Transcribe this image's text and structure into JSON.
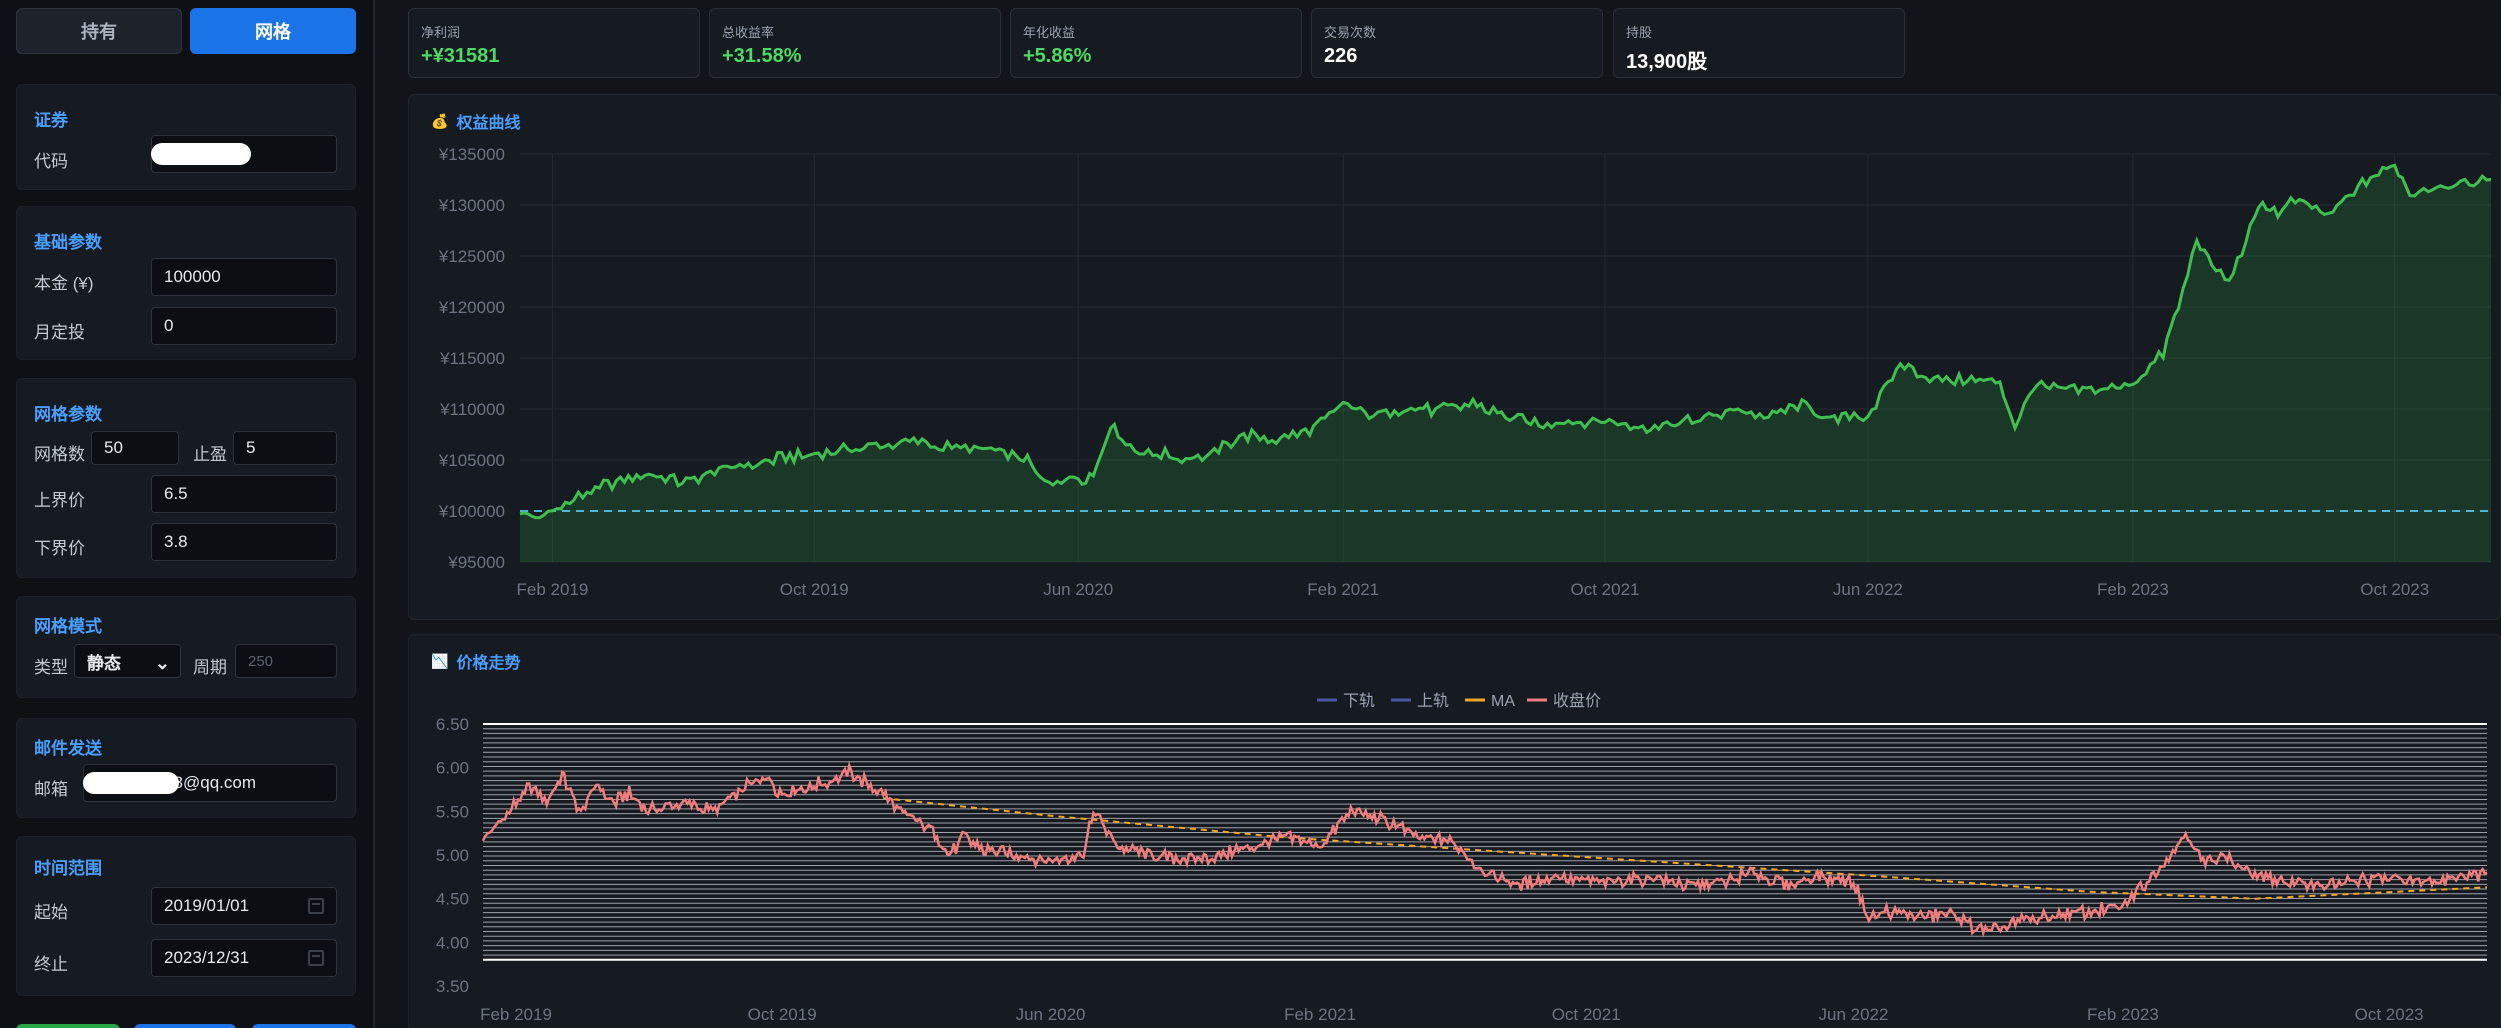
{
  "sidebar": {
    "tabs": [
      {
        "label": "持有",
        "active": false
      },
      {
        "label": "网格",
        "active": true
      }
    ],
    "security": {
      "title": "证券",
      "code_label": "代码",
      "code_value": ""
    },
    "basic": {
      "title": "基础参数",
      "capital_label": "本金 (¥)",
      "capital_value": "100000",
      "monthly_label": "月定投",
      "monthly_value": "0"
    },
    "grid": {
      "title": "网格参数",
      "count_label": "网格数",
      "count_value": "50",
      "tp_label": "止盈",
      "tp_value": "5",
      "upper_label": "上界价",
      "upper_value": "6.5",
      "lower_label": "下界价",
      "lower_value": "3.8"
    },
    "mode": {
      "title": "网格模式",
      "type_label": "类型",
      "type_value": "静态",
      "period_label": "周期",
      "period_placeholder": "250"
    },
    "email": {
      "title": "邮件发送",
      "label": "邮箱",
      "value_suffix": "88@qq.com"
    },
    "time": {
      "title": "时间范围",
      "start_label": "起始",
      "start_value": "2019/01/01",
      "end_label": "终止",
      "end_value": "2023/12/31"
    },
    "bottom_button_colors": [
      "#28a745",
      "#1b73e8",
      "#1b73e8"
    ]
  },
  "stats": [
    {
      "label": "净利润",
      "value": "+¥31581",
      "positive": true
    },
    {
      "label": "总收益率",
      "value": "+31.58%",
      "positive": true
    },
    {
      "label": "年化收益",
      "value": "+5.86%",
      "positive": true
    },
    {
      "label": "交易次数",
      "value": "226",
      "positive": false
    },
    {
      "label": "持股",
      "value": "13,900股",
      "positive": false
    }
  ],
  "colors": {
    "accent": "#4a9eff",
    "positive": "#4cd964",
    "equity_line": "#3fbf4f",
    "baseline": "#4fb5d6",
    "close_line": "#f07c7c",
    "ma_line": "#f2a623",
    "band_line": "#4a55a8"
  },
  "chart_data": [
    {
      "type": "area",
      "title": "权益曲线",
      "icon": "money-bag-icon",
      "y_tick_labels": [
        "¥135000",
        "¥130000",
        "¥125000",
        "¥120000",
        "¥115000",
        "¥110000",
        "¥105000",
        "¥100000",
        "¥95000"
      ],
      "x_tick_labels": [
        "Feb 2019",
        "Oct 2019",
        "Jun 2020",
        "Feb 2021",
        "Oct 2021",
        "Jun 2022",
        "Feb 2023",
        "Oct 2023"
      ],
      "ylim": [
        95000,
        135000
      ],
      "baseline": 100000,
      "grid": true,
      "series": [
        {
          "x": [
            "2019-01-02",
            "2019-01-20",
            "2019-03-01",
            "2019-04-01",
            "2019-05-01",
            "2019-06-01",
            "2019-07-01",
            "2019-08-01",
            "2019-09-01",
            "2019-10-01",
            "2019-11-01",
            "2019-12-01",
            "2020-01-01",
            "2020-02-01",
            "2020-03-01",
            "2020-04-01",
            "2020-04-15",
            "2020-05-01",
            "2020-06-01",
            "2020-06-15",
            "2020-07-01",
            "2020-07-15",
            "2020-08-01",
            "2020-09-01",
            "2020-10-01",
            "2020-11-01",
            "2020-12-01",
            "2021-01-01",
            "2021-01-15",
            "2021-02-01",
            "2021-03-01",
            "2021-04-01",
            "2021-05-01",
            "2021-06-01",
            "2021-07-01",
            "2021-08-01",
            "2021-09-01",
            "2021-10-01",
            "2021-11-01",
            "2021-12-01",
            "2022-01-01",
            "2022-02-01",
            "2022-03-01",
            "2022-04-01",
            "2022-05-01",
            "2022-05-15",
            "2022-06-01",
            "2022-07-01",
            "2022-08-01",
            "2022-09-01",
            "2022-10-01",
            "2022-10-15",
            "2022-11-01",
            "2022-12-01",
            "2023-01-01",
            "2023-02-01",
            "2023-03-01",
            "2023-03-15",
            "2023-04-01",
            "2023-04-15",
            "2023-05-01",
            "2023-06-01",
            "2023-06-15",
            "2023-07-01",
            "2023-08-01",
            "2023-09-01",
            "2023-10-01",
            "2023-10-15",
            "2023-11-01",
            "2023-12-01",
            "2023-12-29"
          ],
          "values": [
            100000,
            99300,
            101500,
            103000,
            103500,
            102800,
            104000,
            104500,
            105200,
            105500,
            106000,
            106500,
            106800,
            106200,
            106000,
            105500,
            104800,
            102800,
            103200,
            103500,
            108500,
            106500,
            105800,
            105300,
            105500,
            107500,
            107000,
            107800,
            109000,
            110500,
            109500,
            110200,
            109800,
            110500,
            109200,
            108500,
            108800,
            109000,
            108200,
            108500,
            109000,
            110000,
            109200,
            110500,
            108800,
            109500,
            109200,
            114500,
            113000,
            112800,
            112800,
            108200,
            112300,
            111800,
            111800,
            112500,
            115500,
            120000,
            126500,
            124000,
            122500,
            130500,
            129000,
            130500,
            129000,
            132000,
            134000,
            131000,
            131800,
            132000,
            132500
          ]
        }
      ]
    },
    {
      "type": "line",
      "title": "价格走势",
      "icon": "chart-icon",
      "legend": [
        "下轨",
        "上轨",
        "MA",
        "收盘价"
      ],
      "legend_position": "top-center",
      "y_tick_labels": [
        "6.50",
        "6.00",
        "5.50",
        "5.00",
        "4.50",
        "4.00",
        "3.50"
      ],
      "x_tick_labels": [
        "Feb 2019",
        "Oct 2019",
        "Jun 2020",
        "Feb 2021",
        "Oct 2021",
        "Jun 2022",
        "Feb 2023",
        "Oct 2023"
      ],
      "ylim": [
        3.5,
        6.5
      ],
      "grid_levels": {
        "lower": 3.8,
        "upper": 6.5,
        "count": 50
      },
      "series": [
        {
          "name": "收盘价",
          "x": [
            "2019-01-02",
            "2019-01-20",
            "2019-02-15",
            "2019-03-01",
            "2019-03-15",
            "2019-04-01",
            "2019-04-15",
            "2019-05-01",
            "2019-05-15",
            "2019-06-01",
            "2019-07-01",
            "2019-08-01",
            "2019-09-01",
            "2019-09-15",
            "2019-10-01",
            "2019-11-01",
            "2019-12-01",
            "2020-01-01",
            "2020-01-15",
            "2020-02-01",
            "2020-02-15",
            "2020-03-01",
            "2020-03-15",
            "2020-04-01",
            "2020-05-01",
            "2020-06-01",
            "2020-07-01",
            "2020-07-10",
            "2020-08-01",
            "2020-09-01",
            "2020-10-01",
            "2020-11-01",
            "2020-12-01",
            "2021-01-01",
            "2021-02-01",
            "2021-02-15",
            "2021-03-01",
            "2021-04-01",
            "2021-05-01",
            "2021-06-01",
            "2021-07-01",
            "2021-08-01",
            "2021-09-01",
            "2021-10-01",
            "2021-11-01",
            "2021-12-01",
            "2022-01-01",
            "2022-02-01",
            "2022-03-01",
            "2022-04-01",
            "2022-05-01",
            "2022-06-01",
            "2022-06-15",
            "2022-07-01",
            "2022-08-01",
            "2022-09-01",
            "2022-10-01",
            "2022-11-01",
            "2022-12-01",
            "2023-01-01",
            "2023-02-01",
            "2023-03-01",
            "2023-04-01",
            "2023-04-15",
            "2023-05-01",
            "2023-06-01",
            "2023-07-01",
            "2023-08-01",
            "2023-09-01",
            "2023-10-01",
            "2023-11-01",
            "2023-12-01",
            "2023-12-29"
          ],
          "values": [
            5.2,
            5.4,
            5.8,
            5.6,
            5.9,
            5.5,
            5.8,
            5.6,
            5.7,
            5.5,
            5.6,
            5.5,
            5.8,
            5.9,
            5.7,
            5.8,
            5.95,
            5.7,
            5.5,
            5.4,
            5.3,
            5.0,
            5.2,
            5.05,
            5.0,
            4.95,
            5.0,
            5.5,
            5.1,
            5.0,
            4.95,
            5.0,
            5.1,
            5.2,
            5.1,
            5.3,
            5.5,
            5.4,
            5.2,
            5.15,
            4.8,
            4.65,
            4.75,
            4.7,
            4.7,
            4.75,
            4.65,
            4.7,
            4.8,
            4.65,
            4.75,
            4.7,
            4.25,
            4.35,
            4.3,
            4.3,
            4.1,
            4.25,
            4.3,
            4.35,
            4.4,
            4.8,
            5.25,
            4.9,
            5.0,
            4.75,
            4.7,
            4.65,
            4.7,
            4.75,
            4.7,
            4.75,
            4.8
          ]
        },
        {
          "name": "MA",
          "x": [
            "2020-01-01",
            "2020-06-01",
            "2021-01-01",
            "2021-07-01",
            "2022-01-01",
            "2022-07-01",
            "2023-01-01",
            "2023-06-01",
            "2023-12-29"
          ],
          "values": [
            5.65,
            5.45,
            5.2,
            5.05,
            4.9,
            4.75,
            4.58,
            4.5,
            4.63
          ]
        },
        {
          "name": "上轨",
          "x": [
            "2019-01-02",
            "2023-12-29"
          ],
          "values": [
            6.5,
            6.5
          ]
        },
        {
          "name": "下轨",
          "x": [
            "2019-01-02",
            "2023-12-29"
          ],
          "values": [
            3.8,
            3.8
          ]
        }
      ]
    }
  ]
}
